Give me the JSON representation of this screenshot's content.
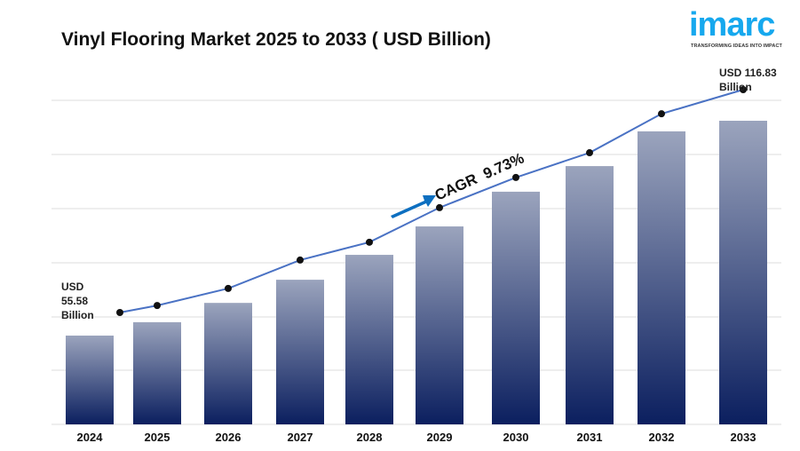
{
  "title": "Vinyl Flooring Market 2025 to 2033 ( USD Billion)",
  "logo": {
    "word": "imarc",
    "tagline": "TRANSFORMING IDEAS INTO IMPACT",
    "color": "#16a8ee"
  },
  "chart_data": {
    "type": "bar",
    "title": "Vinyl Flooring Market 2025 to 2033 ( USD Billion)",
    "categories": [
      "2024",
      "2025",
      "2026",
      "2027",
      "2028",
      "2029",
      "2030",
      "2031",
      "2032",
      "2033"
    ],
    "series": [
      {
        "type": "bar",
        "values": [
          55.58,
          59.4,
          64.9,
          71.5,
          78.6,
          86.7,
          96.6,
          103.9,
          113.8,
          116.83
        ]
      },
      {
        "type": "line",
        "values": [
          55.58,
          57.5,
          62.2,
          70.0,
          74.9,
          84.4,
          92.7,
          99.5,
          110.2,
          116.83
        ]
      }
    ],
    "annotations": {
      "start": [
        "USD",
        "55.58",
        "Billion"
      ],
      "end": [
        "USD 116.83",
        "Billion"
      ],
      "cagr": "CAGR  9.73%"
    },
    "grid": true,
    "colors": {
      "bar_top": "#9ba4bd",
      "bar_bottom": "#0b1f5f",
      "line": "#4a72c4",
      "marker": "#111111",
      "arrow": "#0d6fc0"
    }
  }
}
